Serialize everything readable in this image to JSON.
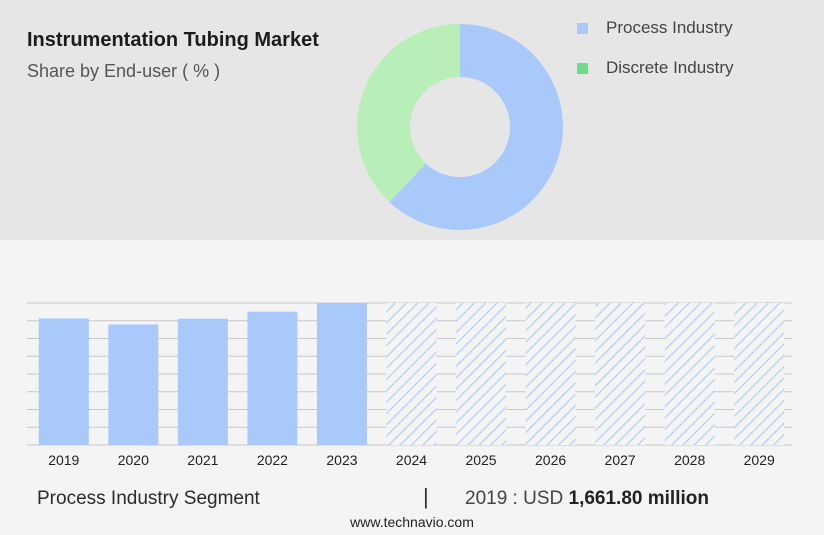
{
  "colors": {
    "process": "#a9c9fb",
    "discrete": "#b8efb8",
    "discrete_legend": "#6ddc8a",
    "grid": "#c8c8c8"
  },
  "header": {
    "title": "Instrumentation Tubing Market",
    "subtitle": "Share by End-user ( % )"
  },
  "legend": [
    {
      "label": "Process Industry",
      "color": "#a9c9fb"
    },
    {
      "label": "Discrete Industry",
      "color": "#6ddc8a"
    }
  ],
  "footer": {
    "segment": "Process Industry Segment",
    "separator": "|",
    "year_value_prefix": "2019 : USD",
    "value": "1,661.80 million",
    "url": "www.technavio.com"
  },
  "chart_data": [
    {
      "type": "pie",
      "categories": [
        "Process Industry",
        "Discrete Industry"
      ],
      "values": [
        62,
        38
      ]
    },
    {
      "type": "bar",
      "categories": [
        "2019",
        "2020",
        "2021",
        "2022",
        "2023",
        "2024",
        "2025",
        "2026",
        "2027",
        "2028",
        "2029"
      ],
      "values": [
        1661.8,
        1582.5,
        1659.1,
        1750.3,
        1865.0,
        null,
        null,
        null,
        null,
        null,
        null
      ],
      "forecast_from": "2024",
      "ylim": [
        0,
        1865.0
      ],
      "grid": true
    }
  ]
}
